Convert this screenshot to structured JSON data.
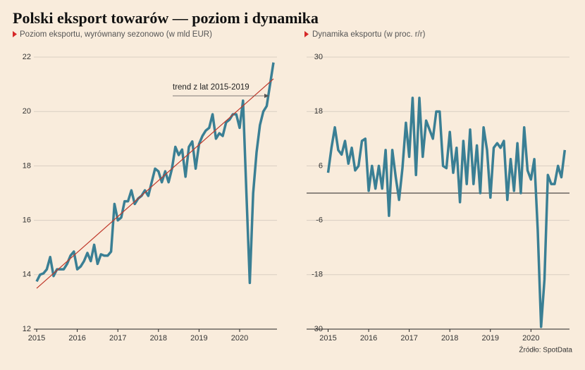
{
  "title": "Polski eksport towarów — poziom i dynamika",
  "source": "Źródło: SpotData",
  "chart_data": [
    {
      "type": "line",
      "title": "Poziom eksportu, wyrównany sezonowo (w mld EUR)",
      "x": [
        2015,
        2015.083,
        2015.167,
        2015.25,
        2015.333,
        2015.417,
        2015.5,
        2015.583,
        2015.667,
        2015.75,
        2015.833,
        2015.917,
        2016,
        2016.083,
        2016.167,
        2016.25,
        2016.333,
        2016.417,
        2016.5,
        2016.583,
        2016.667,
        2016.75,
        2016.833,
        2016.917,
        2017,
        2017.083,
        2017.167,
        2017.25,
        2017.333,
        2017.417,
        2017.5,
        2017.583,
        2017.667,
        2017.75,
        2017.833,
        2017.917,
        2018,
        2018.083,
        2018.167,
        2018.25,
        2018.333,
        2018.417,
        2018.5,
        2018.583,
        2018.667,
        2018.75,
        2018.833,
        2018.917,
        2019,
        2019.083,
        2019.167,
        2019.25,
        2019.333,
        2019.417,
        2019.5,
        2019.583,
        2019.667,
        2019.75,
        2019.833,
        2019.917,
        2020,
        2020.083,
        2020.167,
        2020.25,
        2020.333,
        2020.417,
        2020.5,
        2020.583,
        2020.667,
        2020.75,
        2020.833
      ],
      "series": [
        {
          "color": "#3a7f94",
          "values": [
            13.75,
            14.0,
            14.05,
            14.2,
            14.65,
            13.95,
            14.2,
            14.2,
            14.2,
            14.4,
            14.7,
            14.85,
            14.2,
            14.3,
            14.5,
            14.8,
            14.5,
            15.1,
            14.4,
            14.75,
            14.7,
            14.7,
            14.85,
            16.6,
            16.0,
            16.1,
            16.7,
            16.7,
            17.1,
            16.6,
            16.8,
            16.9,
            17.1,
            16.9,
            17.4,
            17.9,
            17.8,
            17.4,
            17.8,
            17.4,
            17.9,
            18.7,
            18.4,
            18.6,
            17.6,
            18.7,
            18.9,
            17.9,
            18.8,
            19.1,
            19.3,
            19.4,
            19.9,
            19.0,
            19.2,
            19.1,
            19.6,
            19.7,
            19.9,
            19.9,
            19.4,
            20.4,
            17.0,
            13.7,
            17.0,
            18.5,
            19.5,
            20.0,
            20.2,
            21.0,
            21.8
          ]
        }
      ],
      "trend": {
        "x": [
          2015,
          2020.833
        ],
        "values": [
          13.5,
          21.2
        ],
        "color": "#c0392b"
      },
      "annotation": "trend z lat 2015-2019",
      "xlim": [
        2014.93,
        2020.92
      ],
      "xticks": [
        2015,
        2016,
        2017,
        2018,
        2019,
        2020
      ],
      "ylim": [
        12,
        22
      ],
      "yticks": [
        12,
        14,
        16,
        18,
        20,
        22
      ],
      "grid": true
    },
    {
      "type": "line",
      "title": "Dynamika eksportu (w proc. r/r)",
      "x": [
        2015,
        2015.083,
        2015.167,
        2015.25,
        2015.333,
        2015.417,
        2015.5,
        2015.583,
        2015.667,
        2015.75,
        2015.833,
        2015.917,
        2016,
        2016.083,
        2016.167,
        2016.25,
        2016.333,
        2016.417,
        2016.5,
        2016.583,
        2016.667,
        2016.75,
        2016.833,
        2016.917,
        2017,
        2017.083,
        2017.167,
        2017.25,
        2017.333,
        2017.417,
        2017.5,
        2017.583,
        2017.667,
        2017.75,
        2017.833,
        2017.917,
        2018,
        2018.083,
        2018.167,
        2018.25,
        2018.333,
        2018.417,
        2018.5,
        2018.583,
        2018.667,
        2018.75,
        2018.833,
        2018.917,
        2019,
        2019.083,
        2019.167,
        2019.25,
        2019.333,
        2019.417,
        2019.5,
        2019.583,
        2019.667,
        2019.75,
        2019.833,
        2019.917,
        2020,
        2020.083,
        2020.167,
        2020.25,
        2020.333,
        2020.417,
        2020.5,
        2020.583,
        2020.667,
        2020.75,
        2020.833
      ],
      "series": [
        {
          "color": "#3a7f94",
          "values": [
            4.5,
            10,
            14.5,
            9.5,
            8.5,
            11.5,
            6.5,
            10,
            5,
            6,
            11.5,
            12,
            0.5,
            6,
            1,
            6,
            1,
            9.5,
            -5,
            9.5,
            3.5,
            -1.5,
            5.5,
            15.5,
            8,
            21,
            4,
            21,
            8,
            16,
            14,
            12,
            18,
            18,
            6,
            5.5,
            13.5,
            4.5,
            10,
            -2,
            11.5,
            2,
            14,
            2,
            10.5,
            0,
            14.5,
            9.5,
            -1,
            10,
            11,
            10,
            11.5,
            -1.5,
            7.5,
            0.5,
            11,
            0,
            14.5,
            5,
            3,
            7.5,
            -8,
            -29.5,
            -19,
            4,
            2,
            2,
            6,
            3.5,
            9.5
          ]
        }
      ],
      "hline": 0,
      "xlim": [
        2014.47,
        2020.95
      ],
      "xticks": [
        2015,
        2016,
        2017,
        2018,
        2019,
        2020
      ],
      "ylim": [
        -30,
        30
      ],
      "yticks": [
        -30,
        -18,
        -6,
        6,
        18,
        30
      ],
      "grid": true
    }
  ]
}
